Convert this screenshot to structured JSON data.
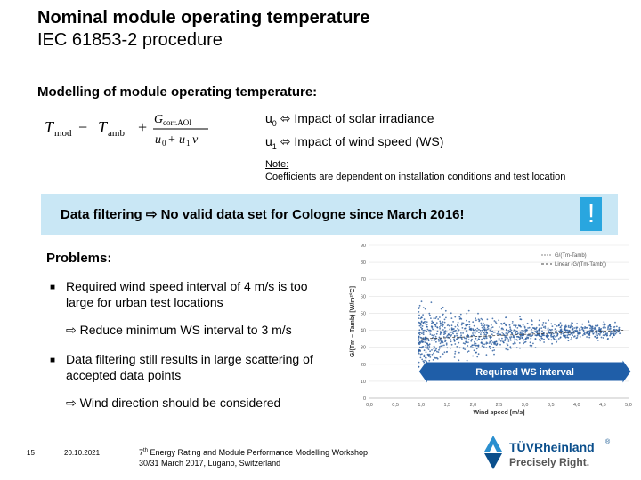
{
  "header": {
    "title_line1": "Nominal module operating temperature",
    "title_line2": "IEC 61853-2 procedure"
  },
  "modelling_heading": "Modelling of module operating temperature:",
  "formula": {
    "lhs": "T",
    "lhs_sub": "mod",
    "minus": " − ",
    "rhs": "T",
    "rhs_sub": "amb",
    "plus": "+",
    "num": "G",
    "num_sub": "corr.AOI",
    "den_u0": "u",
    "den_u0_sub": "0",
    "den_u1": "u",
    "den_u1_sub": "1",
    "den_v": "v"
  },
  "coefficients": [
    {
      "symbol": "u",
      "sub": "0",
      "arrow": "⬄",
      "text": "Impact of solar irradiance"
    },
    {
      "symbol": "u",
      "sub": "1",
      "arrow": "⬄",
      "text": "Impact of wind speed (WS)"
    }
  ],
  "note": {
    "label": "Note:",
    "text": "Coefficients are dependent on installation conditions and test location"
  },
  "banner": {
    "text": "Data filtering ⇨ No valid data set for Cologne since March 2016!",
    "exclamation": "!"
  },
  "problems": {
    "heading": "Problems:",
    "bullet_symbol": "■",
    "bullet1": "Required wind speed interval of 4 m/s is too large for urban test locations",
    "sub1": "⇨ Reduce minimum WS interval to 3 m/s",
    "bullet2": "Data filtering still results in large scattering of accepted data points",
    "sub2": "⇨ Wind direction should be considered"
  },
  "chart_data": {
    "type": "scatter",
    "xlabel": "Wind speed [m/s]",
    "ylabel": "G/(Tm – Tamb) [W/m²°C]",
    "x_ticks": [
      "0,0",
      "0,5",
      "1,0",
      "1,5",
      "2,0",
      "2,5",
      "3,0",
      "3,5",
      "4,0",
      "4,5",
      "5,0"
    ],
    "y_ticks": [
      "90",
      "80",
      "70",
      "60",
      "50",
      "40",
      "30",
      "20",
      "10",
      "0"
    ],
    "xlim": [
      0,
      5
    ],
    "ylim": [
      0,
      90
    ],
    "legend": [
      "G/(Tm-Tamb)",
      "Linear (G/(Tm-Tamb))"
    ],
    "legend_position": "top-right",
    "annotation": "Required WS interval",
    "annotation_range": [
      1,
      5
    ],
    "series_color": "#2a5d9f"
  },
  "footer": {
    "page_number": "15",
    "date": "20.10.2021",
    "event_prefix": "7",
    "event_sup": "th",
    "event_line1": " Energy Rating and Module Performance Modelling Workshop",
    "event_line2": "30/31 March 2017, Lugano, Switzerland"
  },
  "logo": {
    "brand": "TÜVRheinland",
    "reg": "®",
    "tagline": "Precisely Right."
  }
}
